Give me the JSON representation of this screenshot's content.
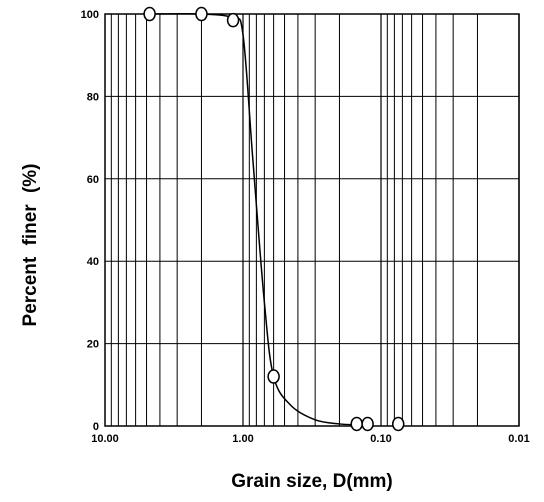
{
  "chart_data": {
    "type": "scatter",
    "title": "",
    "xlabel": "Grain size, D(mm)",
    "ylabel": "Percent finer (%)",
    "x_scale": "log",
    "x_reversed": true,
    "xlim": [
      10,
      0.01
    ],
    "ylim": [
      0,
      100
    ],
    "x_tick_labels": [
      "10.00",
      "1.00",
      "0.10",
      "0.01"
    ],
    "x_tick_values": [
      10,
      1,
      0.1,
      0.01
    ],
    "y_tick_labels": [
      "0",
      "20",
      "40",
      "60",
      "80",
      "100"
    ],
    "y_tick_values": [
      0,
      20,
      40,
      60,
      80,
      100
    ],
    "grid": true,
    "legend": "none",
    "series": [
      {
        "marker": "open-circle",
        "x": [
          4.75,
          2.0,
          1.18,
          0.6,
          0.15,
          0.125,
          0.075
        ],
        "y": [
          100,
          100,
          98.5,
          12,
          0.5,
          0.5,
          0.5
        ]
      }
    ],
    "curve": {
      "x": [
        4.75,
        2.0,
        1.18,
        1.0,
        0.85,
        0.7,
        0.6,
        0.45,
        0.3,
        0.2,
        0.15
      ],
      "y": [
        100,
        100,
        99,
        95,
        65,
        30,
        12,
        5,
        1.5,
        0.5,
        0.3
      ]
    }
  }
}
